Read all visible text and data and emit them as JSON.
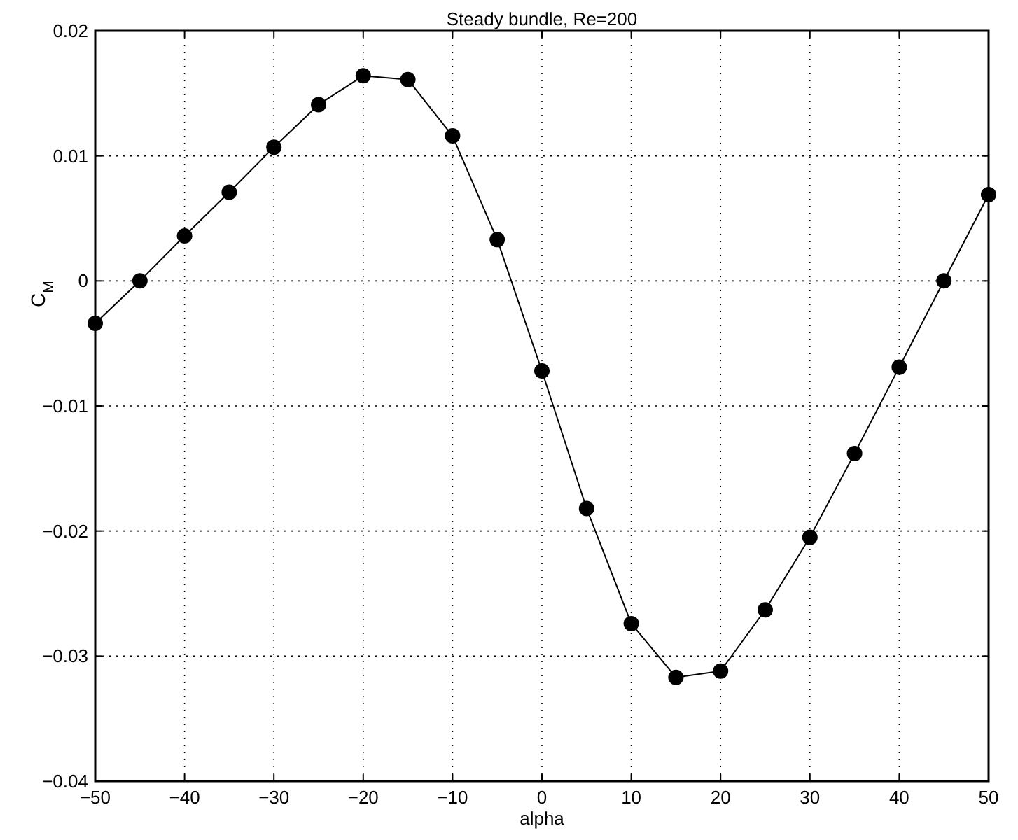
{
  "chart_data": {
    "type": "line",
    "title": "Steady bundle, Re=200",
    "xlabel": "alpha",
    "ylabel": "C$_{M}$",
    "x": [
      -50,
      -45,
      -40,
      -35,
      -30,
      -25,
      -20,
      -15,
      -10,
      -5,
      0,
      5,
      10,
      15,
      20,
      25,
      30,
      35,
      40,
      45,
      50
    ],
    "series": [
      {
        "color": "#000000",
        "values": [
          -0.0034,
          0,
          0.0036,
          0.0071,
          0.0107,
          0.0141,
          0.0164,
          0.0161,
          0.0116,
          0.0033,
          -0.0072,
          -0.0182,
          -0.0274,
          -0.0317,
          -0.0312,
          -0.0263,
          -0.0205,
          -0.0138,
          -0.0069,
          0,
          0.0069
        ]
      }
    ],
    "xlim": [
      -50,
      50
    ],
    "xticks": [
      -50,
      -40,
      -30,
      -20,
      -10,
      0,
      10,
      20,
      30,
      40,
      50
    ],
    "ylim": [
      -0.04,
      0.02
    ],
    "yticks": [
      -0.04,
      -0.03,
      -0.02,
      -0.01,
      0,
      0.01,
      0.02
    ],
    "grid": true,
    "marker": "circle",
    "line_style": "solid"
  }
}
